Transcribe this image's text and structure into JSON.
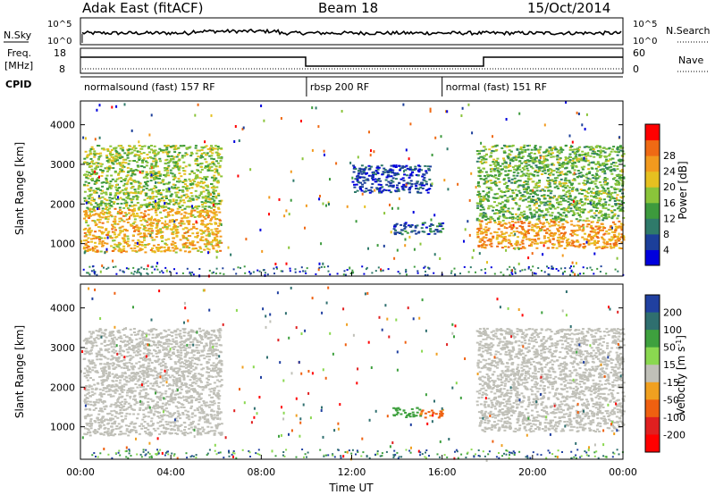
{
  "header": {
    "station": "Adak East (fitACF)",
    "beam": "Beam 18",
    "date": "15/Oct/2014"
  },
  "strip_labels": {
    "nsky": "N.Sky",
    "nsearch": "N.Search",
    "freq_line1": "Freq.",
    "freq_line2": "[MHz]",
    "nave": "Nave",
    "cpid": "CPID"
  },
  "strip_ticks": {
    "nsky_left": [
      "10^5",
      "10^0"
    ],
    "nsky_right": [
      "10^5",
      "10^0"
    ],
    "freq_left": [
      "18",
      "8"
    ],
    "freq_right": [
      "60",
      "0"
    ]
  },
  "cpid_segments": [
    {
      "label": "normalsound (fast) 157 RF",
      "start_hr": 0,
      "end_hr": 10
    },
    {
      "label": "rbsp 200 RF",
      "start_hr": 10,
      "end_hr": 16
    },
    {
      "label": "normal (fast) 151 RF",
      "start_hr": 16,
      "end_hr": 24
    }
  ],
  "chart_data": [
    {
      "type": "heatmap",
      "name": "power",
      "ylabel": "Slant Range [km]",
      "xlabel": "Time UT",
      "xlim": [
        0,
        24
      ],
      "ylim": [
        180,
        4600
      ],
      "yticks": [
        1000,
        2000,
        3000,
        4000
      ],
      "colorbar": {
        "label": "Power [dB]",
        "ticks": [
          4,
          8,
          12,
          16,
          20,
          24,
          28
        ],
        "colors": [
          "#0000dd",
          "#1c3f9a",
          "#2f7a6a",
          "#3d9a3d",
          "#8ac43a",
          "#e6c020",
          "#f29a1e",
          "#ef6a14",
          "#ff0000"
        ]
      },
      "regions": [
        {
          "t0": 0.1,
          "t1": 6.2,
          "r0": 800,
          "r1": 1900,
          "level": 24
        },
        {
          "t0": 0.1,
          "t1": 6.2,
          "r0": 1900,
          "r1": 3500,
          "level": 18
        },
        {
          "t0": 13.8,
          "t1": 16.0,
          "r0": 1250,
          "r1": 1550,
          "level": 8
        },
        {
          "t0": 12.0,
          "t1": 15.5,
          "r0": 2300,
          "r1": 3000,
          "level": 6
        },
        {
          "t0": 17.5,
          "t1": 24.0,
          "r0": 900,
          "r1": 1600,
          "level": 26
        },
        {
          "t0": 17.5,
          "t1": 24.0,
          "r0": 1600,
          "r1": 3500,
          "level": 16
        }
      ]
    },
    {
      "type": "heatmap",
      "name": "velocity",
      "ylabel": "Slant Range [km]",
      "xlabel": "Time UT",
      "xlim": [
        0,
        24
      ],
      "ylim": [
        180,
        4600
      ],
      "yticks": [
        1000,
        2000,
        3000,
        4000
      ],
      "xticks": [
        "00:00",
        "04:00",
        "08:00",
        "12:00",
        "16:00",
        "20:00",
        "00:00"
      ],
      "colorbar": {
        "label": "Velocity [m s^-1]",
        "ticks": [
          200,
          100,
          50,
          15,
          -15,
          -50,
          -100,
          -200
        ],
        "colors": [
          "#2040a0",
          "#2f6f6f",
          "#3ea03e",
          "#8ad850",
          "#c0c0b8",
          "#f0a020",
          "#ef6010",
          "#e02020",
          "#ff0000"
        ]
      },
      "regions": [
        {
          "t0": 0.1,
          "t1": 6.2,
          "r0": 800,
          "r1": 3500,
          "velocity": 0
        },
        {
          "t0": 13.8,
          "t1": 15.0,
          "r0": 1250,
          "r1": 1500,
          "velocity": 80
        },
        {
          "t0": 15.0,
          "t1": 16.0,
          "r0": 1250,
          "r1": 1450,
          "velocity": -60
        },
        {
          "t0": 17.5,
          "t1": 24.0,
          "r0": 900,
          "r1": 3500,
          "velocity": 0
        }
      ]
    }
  ],
  "colors": {
    "frame": "#000000",
    "ground_scatter": "#bebebe"
  }
}
